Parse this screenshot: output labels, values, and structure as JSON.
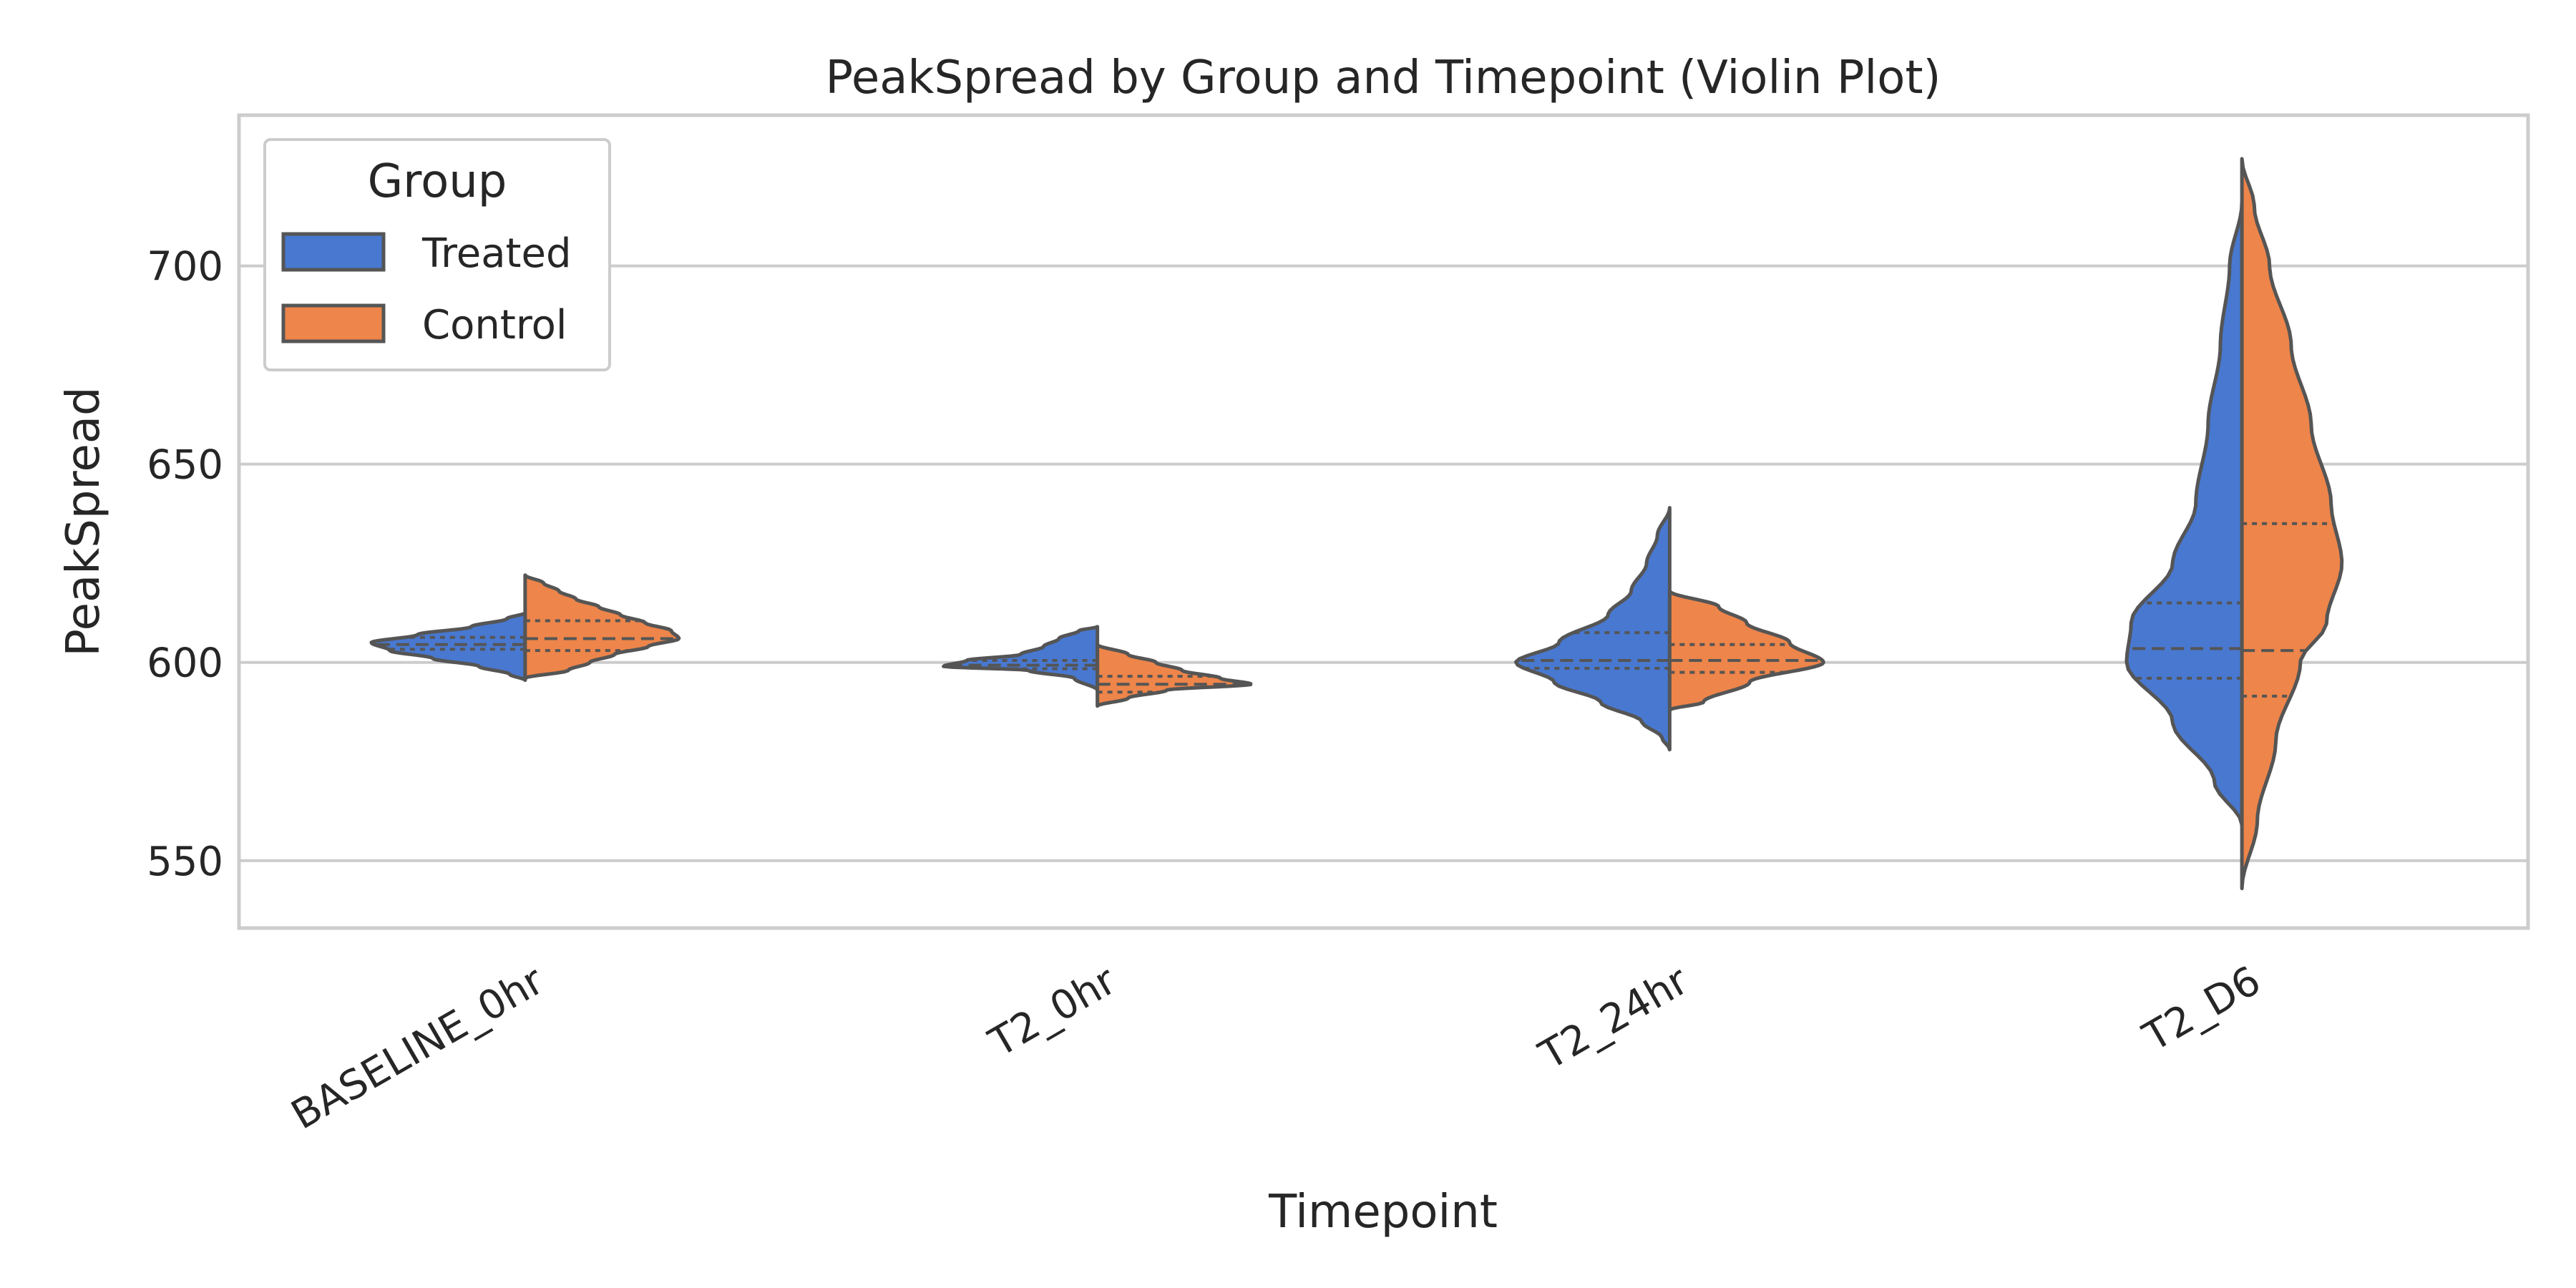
{
  "chart_data": {
    "type": "violin",
    "title": "PeakSpread by Group and Timepoint (Violin Plot)",
    "xlabel": "Timepoint",
    "ylabel": "PeakSpread",
    "categories": [
      "BASELINE_0hr",
      "T2_0hr",
      "T2_24hr",
      "T2_D6"
    ],
    "yticks": [
      550,
      600,
      650,
      700
    ],
    "ylim": [
      533,
      738
    ],
    "grid": "horizontal",
    "split": true,
    "inner": "quartile",
    "legend": {
      "title": "Group",
      "placement": "top-left",
      "entries": [
        "Treated",
        "Control"
      ]
    },
    "colors": {
      "Treated": "#4878d0",
      "Control": "#ee854a",
      "outline": "#555555",
      "grid": "#cccccc",
      "frame": "#cccccc"
    },
    "series": [
      {
        "name": "Treated",
        "violins": [
          {
            "category": "BASELINE_0hr",
            "profile": [
              [
                595.5,
                0.0
              ],
              [
                597,
                0.1
              ],
              [
                599,
                0.3
              ],
              [
                601,
                0.6
              ],
              [
                603,
                0.88
              ],
              [
                605,
                1.0
              ],
              [
                607,
                0.7
              ],
              [
                609,
                0.35
              ],
              [
                611,
                0.12
              ],
              [
                612.5,
                0.0
              ]
            ],
            "quartiles": [
              603.3,
              604.5,
              606.3
            ]
          },
          {
            "category": "T2_0hr",
            "profile": [
              [
                593,
                0.0
              ],
              [
                596,
                0.15
              ],
              [
                598,
                0.45
              ],
              [
                599,
                1.0
              ],
              [
                600.5,
                0.85
              ],
              [
                602,
                0.5
              ],
              [
                604,
                0.35
              ],
              [
                606,
                0.25
              ],
              [
                608,
                0.12
              ],
              [
                609,
                0.0
              ]
            ],
            "quartiles": [
              598.4,
              599.3,
              600.5
            ]
          },
          {
            "category": "T2_24hr",
            "profile": [
              [
                578,
                0.0
              ],
              [
                581,
                0.05
              ],
              [
                585,
                0.18
              ],
              [
                590,
                0.45
              ],
              [
                595,
                0.75
              ],
              [
                600,
                1.0
              ],
              [
                605,
                0.72
              ],
              [
                612,
                0.4
              ],
              [
                618,
                0.25
              ],
              [
                625,
                0.15
              ],
              [
                632,
                0.08
              ],
              [
                639,
                0.0
              ]
            ],
            "quartiles": [
              598.5,
              600.5,
              607.5
            ]
          },
          {
            "category": "T2_D6",
            "profile": [
              [
                559,
                0.0
              ],
              [
                570,
                0.18
              ],
              [
                585,
                0.45
              ],
              [
                600,
                0.75
              ],
              [
                610,
                0.72
              ],
              [
                625,
                0.45
              ],
              [
                640,
                0.3
              ],
              [
                660,
                0.22
              ],
              [
                680,
                0.14
              ],
              [
                700,
                0.08
              ],
              [
                716,
                0.0
              ]
            ],
            "quartiles": [
              596,
              603.5,
              615
            ]
          }
        ]
      },
      {
        "name": "Control",
        "violins": [
          {
            "category": "BASELINE_0hr",
            "profile": [
              [
                596,
                0.0
              ],
              [
                598,
                0.28
              ],
              [
                600,
                0.42
              ],
              [
                602,
                0.58
              ],
              [
                604,
                0.8
              ],
              [
                606,
                1.0
              ],
              [
                608,
                0.95
              ],
              [
                610,
                0.78
              ],
              [
                612,
                0.62
              ],
              [
                614,
                0.48
              ],
              [
                616,
                0.33
              ],
              [
                618,
                0.22
              ],
              [
                620,
                0.12
              ],
              [
                622,
                0.0
              ]
            ],
            "quartiles": [
              603,
              606,
              610.5
            ]
          },
          {
            "category": "T2_0hr",
            "profile": [
              [
                589,
                0.0
              ],
              [
                591,
                0.2
              ],
              [
                593,
                0.45
              ],
              [
                594.5,
                1.0
              ],
              [
                596,
                0.8
              ],
              [
                598,
                0.55
              ],
              [
                600,
                0.38
              ],
              [
                602,
                0.2
              ],
              [
                604.5,
                0.0
              ]
            ],
            "quartiles": [
              592.5,
              594.5,
              596.5
            ]
          },
          {
            "category": "T2_24hr",
            "profile": [
              [
                588,
                0.0
              ],
              [
                590,
                0.22
              ],
              [
                595,
                0.52
              ],
              [
                600,
                1.0
              ],
              [
                605,
                0.78
              ],
              [
                610,
                0.5
              ],
              [
                614,
                0.32
              ],
              [
                618,
                0.0
              ]
            ],
            "quartiles": [
              597.5,
              600.5,
              604.5
            ]
          },
          {
            "category": "T2_D6",
            "profile": [
              [
                543,
                0.0
              ],
              [
                560,
                0.1
              ],
              [
                580,
                0.22
              ],
              [
                600,
                0.38
              ],
              [
                610,
                0.55
              ],
              [
                625,
                0.65
              ],
              [
                640,
                0.58
              ],
              [
                660,
                0.45
              ],
              [
                680,
                0.32
              ],
              [
                700,
                0.18
              ],
              [
                715,
                0.08
              ],
              [
                727,
                0.0
              ]
            ],
            "quartiles": [
              591.5,
              603,
              635
            ]
          }
        ]
      }
    ]
  }
}
